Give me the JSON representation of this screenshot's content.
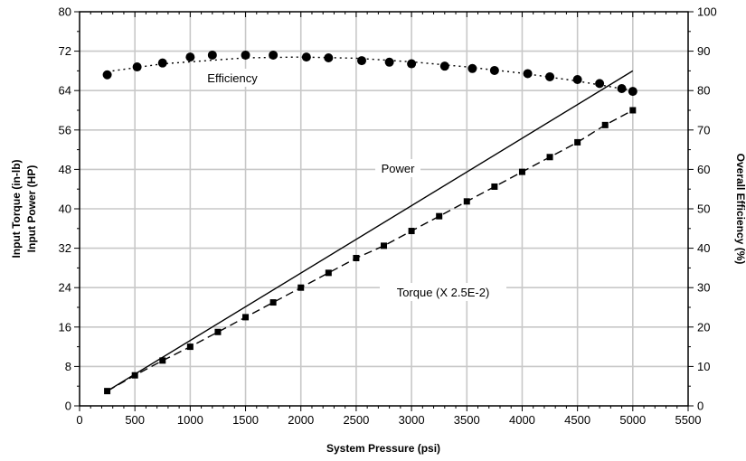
{
  "chart_data": {
    "type": "line",
    "xlabel": "System Pressure (psi)",
    "ylabel_left": [
      "Input Torque (in-lb)",
      "Input Power (HP)"
    ],
    "ylabel_right": "Overall Efficiency (%)",
    "xlim": [
      0,
      5500
    ],
    "xticks": [
      0,
      500,
      1000,
      1500,
      2000,
      2500,
      3000,
      3500,
      4000,
      4500,
      5000,
      5500
    ],
    "ylim_left": [
      0,
      80
    ],
    "yticks_left": [
      0,
      8,
      16,
      24,
      32,
      40,
      48,
      56,
      64,
      72,
      80
    ],
    "ylim_right": [
      0,
      100
    ],
    "yticks_right": [
      0,
      10,
      20,
      30,
      40,
      50,
      60,
      70,
      80,
      90,
      100
    ],
    "grid": true,
    "series": [
      {
        "name": "Efficiency",
        "axis": "right",
        "marker": "circle",
        "line": "dotted",
        "points": [
          [
            250,
            84
          ],
          [
            520,
            86
          ],
          [
            750,
            87
          ],
          [
            1000,
            88.5
          ],
          [
            1200,
            89
          ],
          [
            1500,
            89
          ],
          [
            1750,
            89
          ],
          [
            2050,
            88.5
          ],
          [
            2250,
            88.3
          ],
          [
            2550,
            87.6
          ],
          [
            2800,
            87.2
          ],
          [
            3000,
            86.8
          ],
          [
            3300,
            86.2
          ],
          [
            3550,
            85.6
          ],
          [
            3750,
            85.1
          ],
          [
            4050,
            84.3
          ],
          [
            4250,
            83.5
          ],
          [
            4500,
            82.8
          ],
          [
            4700,
            81.8
          ],
          [
            4900,
            80.5
          ],
          [
            5000,
            79.8
          ]
        ],
        "fit": [
          [
            250,
            84.8
          ],
          [
            750,
            86.8
          ],
          [
            1500,
            88.3
          ],
          [
            2000,
            88.5
          ],
          [
            2500,
            88.2
          ],
          [
            3000,
            87.3
          ],
          [
            3500,
            86
          ],
          [
            4000,
            84.4
          ],
          [
            4500,
            82.4
          ],
          [
            5000,
            80
          ]
        ]
      },
      {
        "name": "Power",
        "axis": "left",
        "marker": "none",
        "line": "solid",
        "points": [
          [
            250,
            3
          ],
          [
            5000,
            68
          ]
        ]
      },
      {
        "name": "Torque (X 2.5E-2)",
        "axis": "left",
        "marker": "square",
        "line": "dashed",
        "points": [
          [
            250,
            3
          ],
          [
            500,
            6.2
          ],
          [
            750,
            9.2
          ],
          [
            1000,
            12
          ],
          [
            1250,
            15
          ],
          [
            1500,
            18
          ],
          [
            1750,
            21
          ],
          [
            2000,
            24
          ],
          [
            2250,
            27
          ],
          [
            2500,
            30
          ],
          [
            2750,
            32.5
          ],
          [
            3000,
            35.5
          ],
          [
            3250,
            38.5
          ],
          [
            3500,
            41.5
          ],
          [
            3750,
            44.5
          ],
          [
            4000,
            47.5
          ],
          [
            4250,
            50.5
          ],
          [
            4500,
            53.5
          ],
          [
            4750,
            57
          ],
          [
            5000,
            60
          ]
        ]
      }
    ],
    "annotations": [
      "Efficiency",
      "Power",
      "Torque (X 2.5E-2)"
    ]
  }
}
